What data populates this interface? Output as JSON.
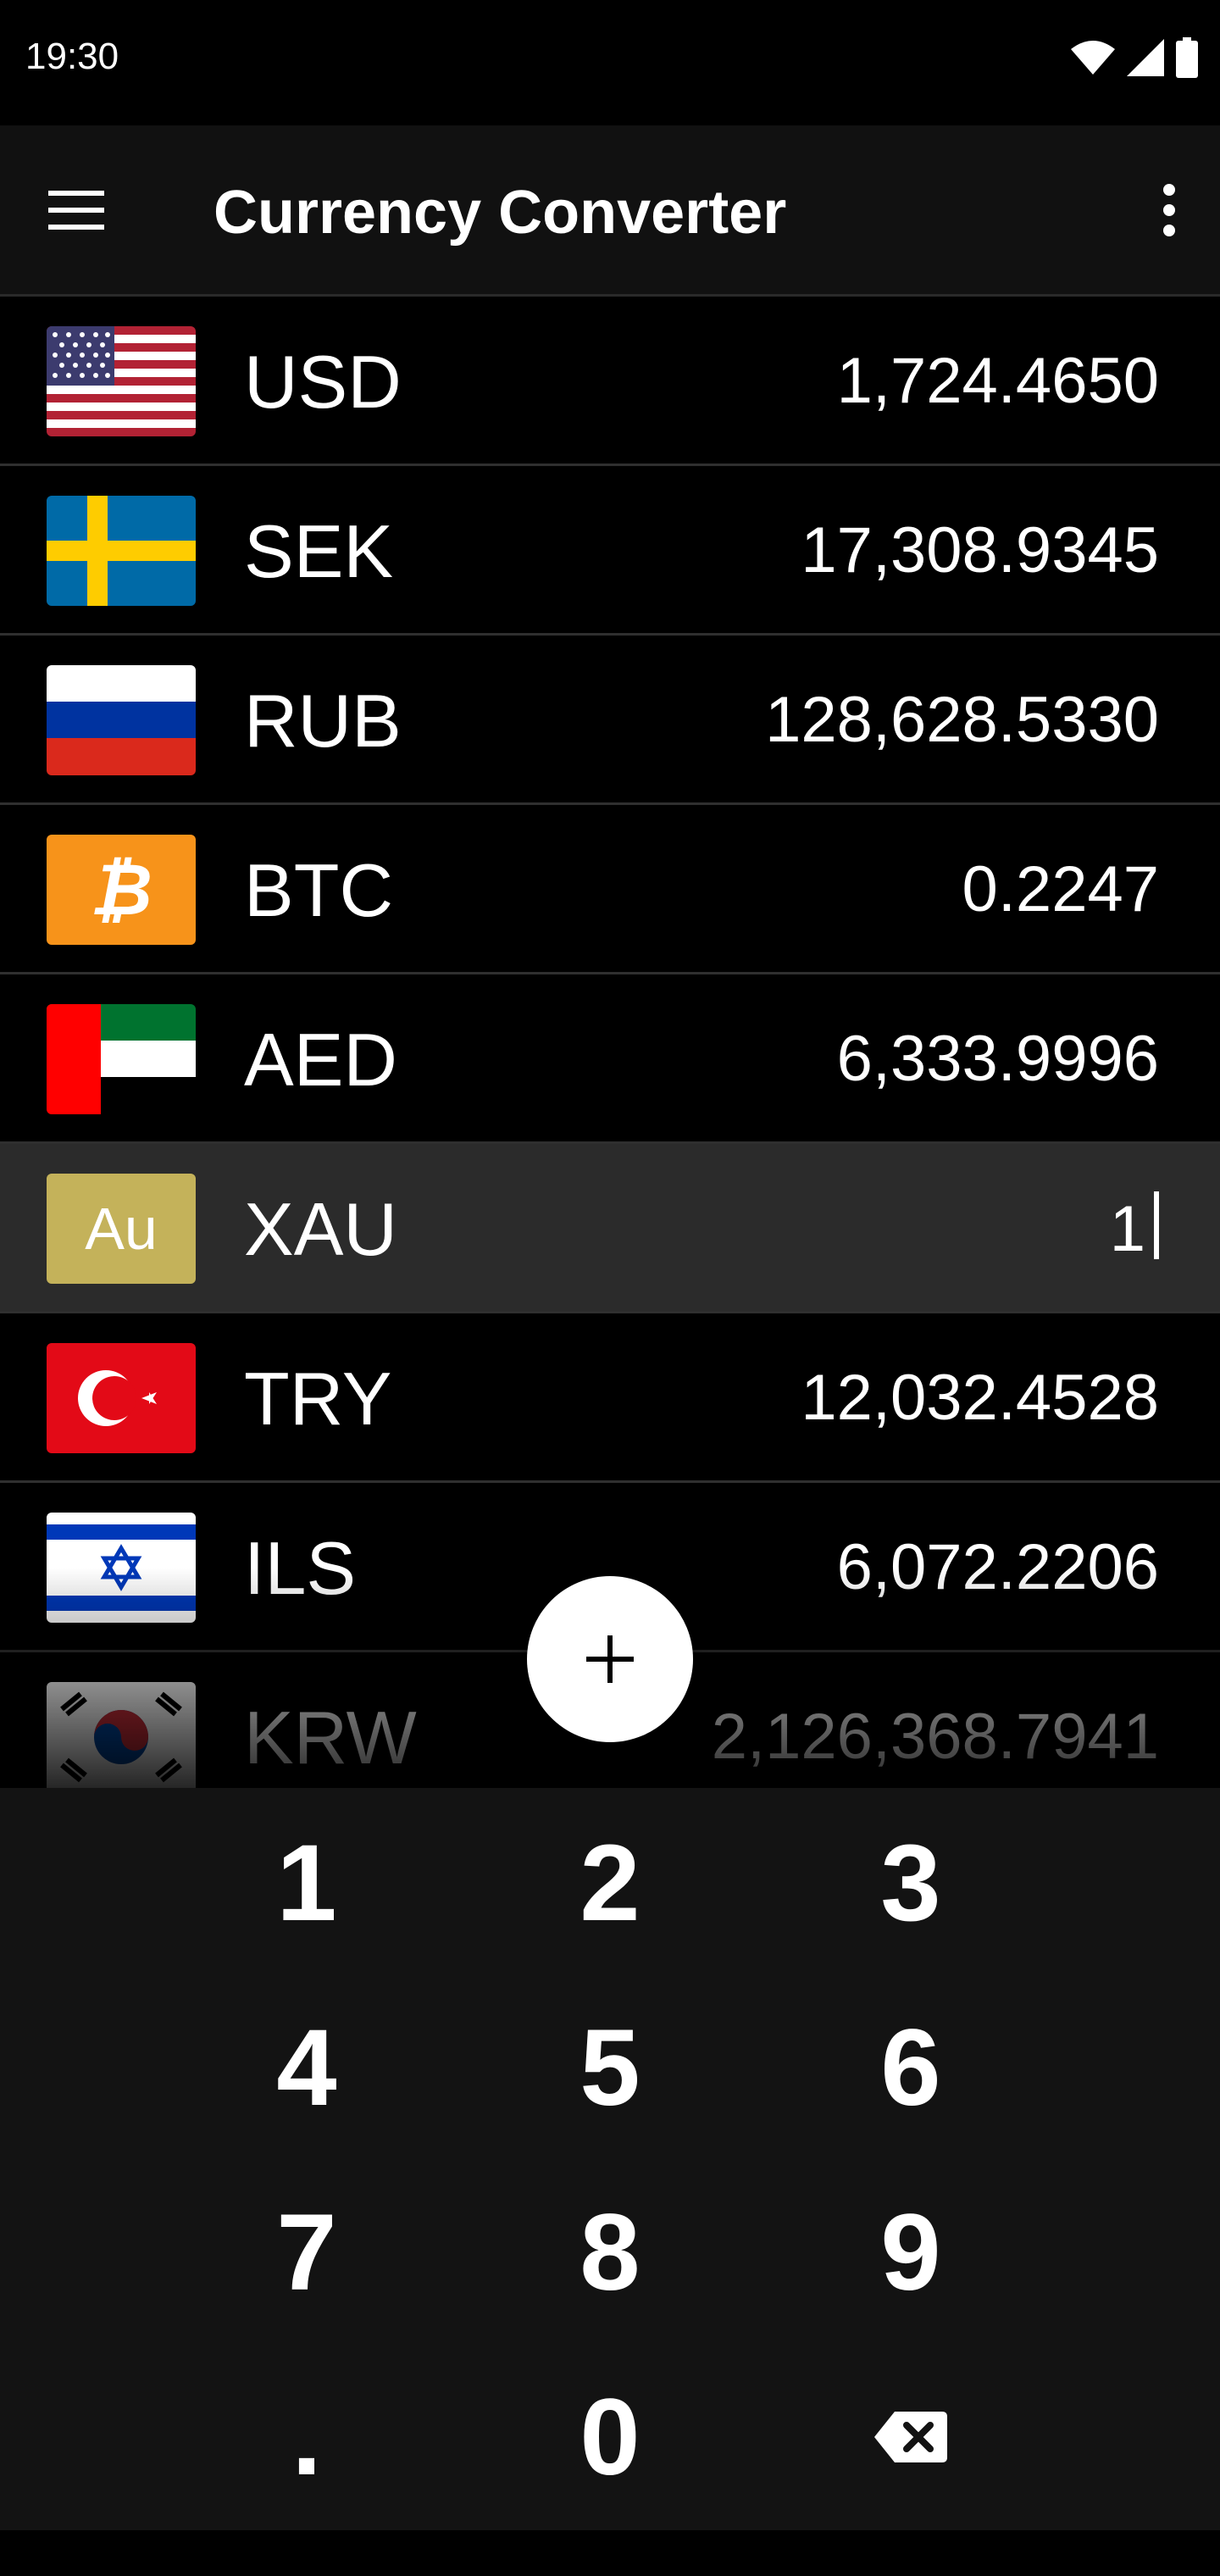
{
  "status": {
    "time": "19:30"
  },
  "appbar": {
    "title": "Currency Converter"
  },
  "currencies": [
    {
      "code": "USD",
      "value": "1,724.4650",
      "flag": "us-flag"
    },
    {
      "code": "SEK",
      "value": "17,308.9345",
      "flag": "sweden-flag"
    },
    {
      "code": "RUB",
      "value": "128,628.5330",
      "flag": "russia-flag"
    },
    {
      "code": "BTC",
      "value": "0.2247",
      "flag": "bitcoin-logo",
      "symbol": "₿"
    },
    {
      "code": "AED",
      "value": "6,333.9996",
      "flag": "uae-flag"
    },
    {
      "code": "XAU",
      "value": "1",
      "flag": "gold-badge",
      "symbol": "Au",
      "selected": true
    },
    {
      "code": "TRY",
      "value": "12,032.4528",
      "flag": "turkey-flag"
    },
    {
      "code": "ILS",
      "value": "6,072.2206",
      "flag": "israel-flag"
    },
    {
      "code": "KRW",
      "value": "2,126,368.7941",
      "flag": "south-korea-flag"
    }
  ],
  "fab": {
    "icon": "plus-icon"
  },
  "keypad": {
    "keys": [
      "1",
      "2",
      "3",
      "4",
      "5",
      "6",
      "7",
      "8",
      "9",
      ".",
      "0"
    ],
    "backspace_icon": "backspace-icon"
  },
  "colors": {
    "background": "#000000",
    "appbar": "#111111",
    "selected_row": "#2b2b2b",
    "keypad": "#131313",
    "bitcoin": "#f7931a",
    "gold": "#c4b25a"
  }
}
